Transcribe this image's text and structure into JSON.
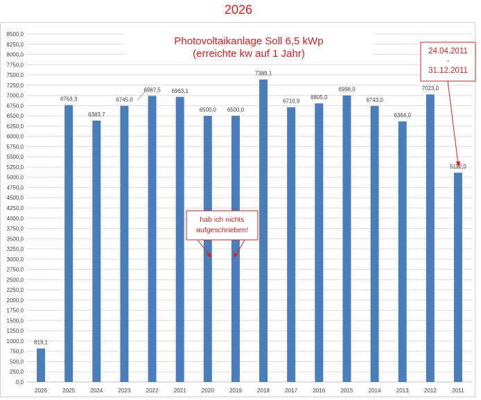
{
  "page_title": "2026",
  "colors": {
    "bar": "#4a7ebb",
    "accent": "#e31b1b",
    "grid": "#d9d9d9"
  },
  "chart_data": {
    "type": "bar",
    "title_lines": [
      "Photovoltaikanlage Soll 6,5 kWp",
      "(erreichte kw auf 1 Jahr)"
    ],
    "categories": [
      "2026",
      "2025",
      "2024",
      "2023",
      "2022",
      "2021",
      "2020",
      "2019",
      "2018",
      "2017",
      "2016",
      "2015",
      "2014",
      "2013",
      "2012",
      "2011"
    ],
    "values": [
      819.1,
      6763.3,
      6383.7,
      6745.0,
      6987.5,
      6963.1,
      6500.0,
      6500.0,
      7389.1,
      6710.9,
      6805.0,
      6998.0,
      6743.0,
      6364.0,
      7023.0,
      5112.0
    ],
    "value_labels": [
      "819,1",
      "6763,3",
      "6383,7",
      "6745,0",
      "6987,5",
      "6963,1",
      "6500,0",
      "6500,0",
      "7389,1",
      "6710,9",
      "6805,0",
      "6998,0",
      "6743,0",
      "6364,0",
      "7023,0",
      "5112,0"
    ],
    "ylim": [
      0,
      8500
    ],
    "ytick_step": 250,
    "grid": true,
    "legend": "none",
    "annotations": [
      {
        "lines": [
          "hab ich nichts",
          "aufgeschrieben!"
        ],
        "points_to": [
          "2020",
          "2019"
        ]
      },
      {
        "lines": [
          "24.04.2011",
          "-",
          "31.12.2011"
        ],
        "points_to": [
          "2011"
        ]
      }
    ]
  }
}
